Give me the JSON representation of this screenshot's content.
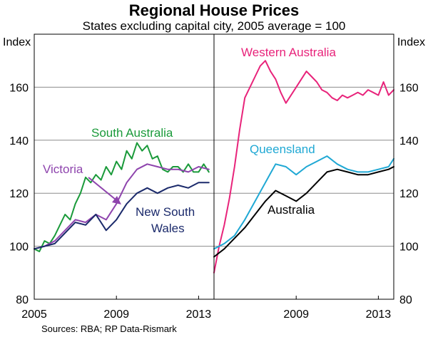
{
  "chart_data": {
    "type": "line",
    "title": "Regional House Prices",
    "subtitle": "States excluding capital city, 2005 average = 100",
    "source": "Sources:  RBA; RP Data-Rismark",
    "y_unit_left": "Index",
    "y_unit_right": "Index",
    "ylim": [
      80,
      180
    ],
    "yticks": [
      80,
      100,
      120,
      140,
      160
    ],
    "colors": {
      "south_australia": "#1a9a3a",
      "victoria": "#8e44ad",
      "nsw": "#1b2a6b",
      "western_australia": "#e8237a",
      "queensland": "#1fa8d4",
      "australia": "#000000",
      "grid": "#8c8c8c",
      "frame": "#000000"
    },
    "panels": [
      {
        "name": "left",
        "xlim": [
          2005.0,
          2013.75
        ],
        "xticks": [
          2005,
          2009,
          2013
        ],
        "series": [
          {
            "name": "South Australia",
            "label": "South Australia",
            "color_key": "south_australia",
            "x": [
              2005.0,
              2005.25,
              2005.5,
              2005.75,
              2006.0,
              2006.25,
              2006.5,
              2006.75,
              2007.0,
              2007.25,
              2007.5,
              2007.75,
              2008.0,
              2008.25,
              2008.5,
              2008.75,
              2009.0,
              2009.25,
              2009.5,
              2009.75,
              2010.0,
              2010.25,
              2010.5,
              2010.75,
              2011.0,
              2011.25,
              2011.5,
              2011.75,
              2012.0,
              2012.25,
              2012.5,
              2012.75,
              2013.0,
              2013.25,
              2013.5
            ],
            "values": [
              99,
              98,
              102,
              101,
              104,
              108,
              112,
              110,
              116,
              120,
              126,
              124,
              127,
              125,
              130,
              127,
              132,
              129,
              136,
              133,
              139,
              136,
              138,
              133,
              134,
              129,
              128,
              130,
              130,
              128,
              131,
              128,
              128,
              131,
              128
            ]
          },
          {
            "name": "Victoria",
            "label": "Victoria",
            "color_key": "victoria",
            "x": [
              2005.0,
              2005.5,
              2006.0,
              2006.5,
              2007.0,
              2007.5,
              2008.0,
              2008.5,
              2009.0,
              2009.5,
              2010.0,
              2010.5,
              2011.0,
              2011.5,
              2012.0,
              2012.5,
              2013.0,
              2013.5
            ],
            "values": [
              99,
              100,
              102,
              106,
              110,
              109,
              112,
              110,
              116,
              124,
              129,
              131,
              130,
              129,
              129,
              128,
              130,
              129
            ]
          },
          {
            "name": "New South Wales",
            "label_lines": [
              "New South",
              "Wales"
            ],
            "color_key": "nsw",
            "x": [
              2005.0,
              2005.5,
              2006.0,
              2006.5,
              2007.0,
              2007.5,
              2008.0,
              2008.5,
              2009.0,
              2009.5,
              2010.0,
              2010.5,
              2011.0,
              2011.5,
              2012.0,
              2012.5,
              2013.0,
              2013.5
            ],
            "values": [
              99,
              100,
              101,
              105,
              109,
              108,
              112,
              106,
              110,
              116,
              120,
              122,
              120,
              122,
              123,
              122,
              124,
              124
            ]
          }
        ]
      },
      {
        "name": "right",
        "xlim": [
          2005.0,
          2013.75
        ],
        "xticks": [
          2009,
          2013
        ],
        "series": [
          {
            "name": "Western Australia",
            "label": "Western Australia",
            "color_key": "western_australia",
            "x": [
              2005.0,
              2005.25,
              2005.5,
              2005.75,
              2006.0,
              2006.25,
              2006.5,
              2006.75,
              2007.0,
              2007.25,
              2007.5,
              2007.75,
              2008.0,
              2008.25,
              2008.5,
              2008.75,
              2009.0,
              2009.25,
              2009.5,
              2009.75,
              2010.0,
              2010.25,
              2010.5,
              2010.75,
              2011.0,
              2011.25,
              2011.5,
              2011.75,
              2012.0,
              2012.25,
              2012.5,
              2012.75,
              2013.0,
              2013.25,
              2013.5,
              2013.75
            ],
            "values": [
              90,
              100,
              108,
              118,
              130,
              144,
              156,
              160,
              164,
              168,
              170,
              166,
              163,
              158,
              154,
              157,
              160,
              163,
              166,
              164,
              162,
              159,
              158,
              156,
              155,
              157,
              156,
              157,
              158,
              157,
              159,
              158,
              157,
              162,
              157,
              159
            ]
          },
          {
            "name": "Queensland",
            "label": "Queensland",
            "color_key": "queensland",
            "x": [
              2005.0,
              2005.5,
              2006.0,
              2006.5,
              2007.0,
              2007.5,
              2008.0,
              2008.5,
              2009.0,
              2009.5,
              2010.0,
              2010.5,
              2011.0,
              2011.5,
              2012.0,
              2012.5,
              2013.0,
              2013.5,
              2013.75
            ],
            "values": [
              99,
              101,
              104,
              110,
              117,
              124,
              131,
              130,
              127,
              130,
              132,
              134,
              131,
              129,
              128,
              128,
              129,
              130,
              133
            ]
          },
          {
            "name": "Australia",
            "label": "Australia",
            "color_key": "australia",
            "x": [
              2005.0,
              2005.5,
              2006.0,
              2006.5,
              2007.0,
              2007.5,
              2008.0,
              2008.5,
              2009.0,
              2009.5,
              2010.0,
              2010.5,
              2011.0,
              2011.5,
              2012.0,
              2012.5,
              2013.0,
              2013.5,
              2013.75
            ],
            "values": [
              96,
              99,
              103,
              107,
              112,
              117,
              121,
              119,
              117,
              120,
              124,
              128,
              129,
              128,
              127,
              127,
              128,
              129,
              130
            ]
          }
        ]
      }
    ]
  }
}
